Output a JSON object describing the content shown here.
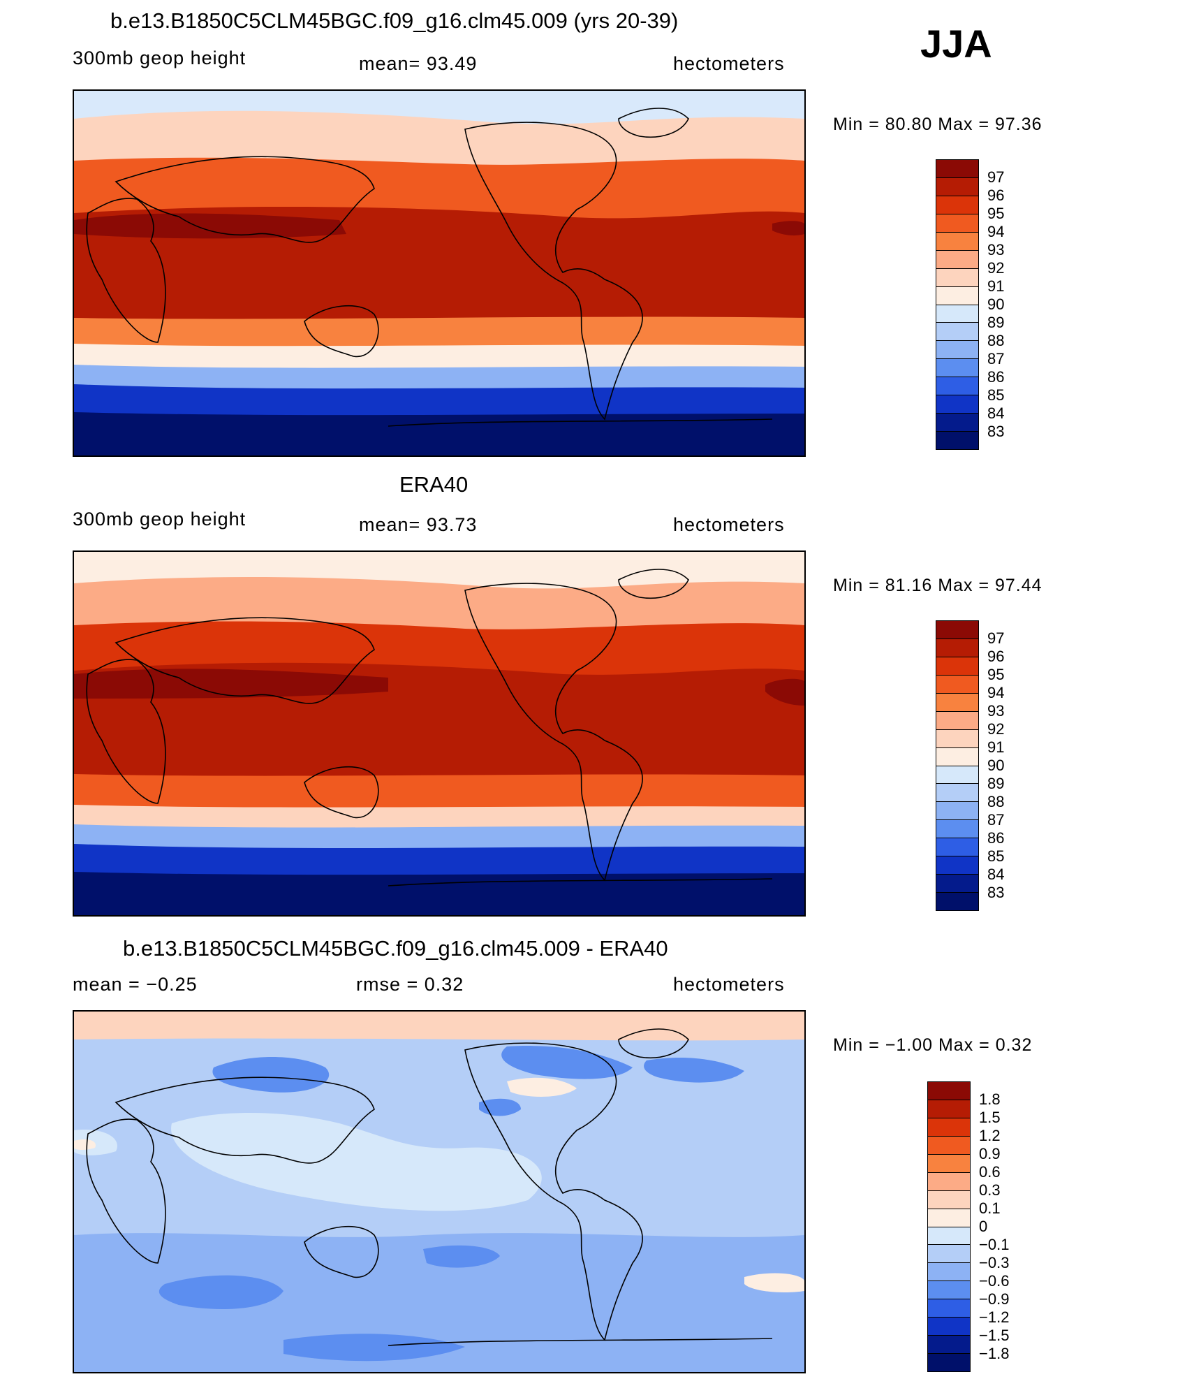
{
  "season": "JJA",
  "panels": [
    {
      "title": "b.e13.B1850C5CLM45BGC.f09_g16.clm45.009 (yrs 20-39)",
      "left_label": "300mb geop height",
      "center_label": "mean=  93.49",
      "right_label": "hectometers",
      "minmax": "Min =   80.80 Max =   97.36",
      "colorbar_labels": [
        "97",
        "96",
        "95",
        "94",
        "93",
        "92",
        "91",
        "90",
        "89",
        "88",
        "87",
        "86",
        "85",
        "84",
        "83"
      ],
      "colorbar_colors": [
        "#8b0a05",
        "#b51c04",
        "#db3409",
        "#f05a20",
        "#f8823f",
        "#fcab86",
        "#fdd4be",
        "#fdeee2",
        "#d6e8fa",
        "#b4cef7",
        "#8db2f4",
        "#5c8ef0",
        "#2e5ee5",
        "#1034c6",
        "#041b8c",
        "#00106a"
      ],
      "map_colors": {
        "arctic": "#d9e9fb",
        "north_mid": "#fdd4be",
        "north": "#f05a20",
        "jet": "#8b0a05",
        "tropics": "#b51c04",
        "south": "#f8823f",
        "south_pale": "#fdeee2",
        "south_blue": "#8db2f4",
        "south_deep": "#1034c6",
        "antarctic": "#00106a"
      }
    },
    {
      "title": "ERA40",
      "left_label": "300mb geop height",
      "center_label": "mean=  93.73",
      "right_label": "hectometers",
      "minmax": "Min =   81.16 Max =   97.44",
      "colorbar_labels": [
        "97",
        "96",
        "95",
        "94",
        "93",
        "92",
        "91",
        "90",
        "89",
        "88",
        "87",
        "86",
        "85",
        "84",
        "83"
      ],
      "colorbar_colors": [
        "#8b0a05",
        "#b51c04",
        "#db3409",
        "#f05a20",
        "#f8823f",
        "#fcab86",
        "#fdd4be",
        "#fdeee2",
        "#d6e8fa",
        "#b4cef7",
        "#8db2f4",
        "#5c8ef0",
        "#2e5ee5",
        "#1034c6",
        "#041b8c",
        "#00106a"
      ],
      "map_colors": {
        "arctic": "#fdeee2",
        "north_mid": "#fcab86",
        "north": "#db3409",
        "jet": "#8b0a05",
        "tropics": "#b51c04",
        "south": "#f05a20",
        "south_pale": "#fdd4be",
        "south_blue": "#8db2f4",
        "south_deep": "#1034c6",
        "antarctic": "#00106a"
      }
    },
    {
      "title": "b.e13.B1850C5CLM45BGC.f09_g16.clm45.009 - ERA40",
      "left_label": "mean =   −0.25",
      "center_label": "rmse =    0.32",
      "right_label": "hectometers",
      "minmax": "Min =  −1.00 Max =    0.32",
      "colorbar_labels": [
        "1.8",
        "1.5",
        "1.2",
        "0.9",
        "0.6",
        "0.3",
        "0.1",
        "0",
        "−0.1",
        "−0.3",
        "−0.6",
        "−0.9",
        "−1.2",
        "−1.5",
        "−1.8"
      ],
      "colorbar_colors": [
        "#8b0a05",
        "#b51c04",
        "#db3409",
        "#f05a20",
        "#f8823f",
        "#fcab86",
        "#fdd4be",
        "#fdeee2",
        "#d6e8fa",
        "#b4cef7",
        "#8db2f4",
        "#5c8ef0",
        "#2e5ee5",
        "#1034c6",
        "#041b8c",
        "#00106a"
      ],
      "map_colors": {
        "top": "#fdd4be",
        "base": "#b4cef7",
        "pale": "#d6e8fa",
        "mid": "#8db2f4",
        "dark": "#5c8ef0",
        "warm": "#fdeee2"
      }
    }
  ]
}
